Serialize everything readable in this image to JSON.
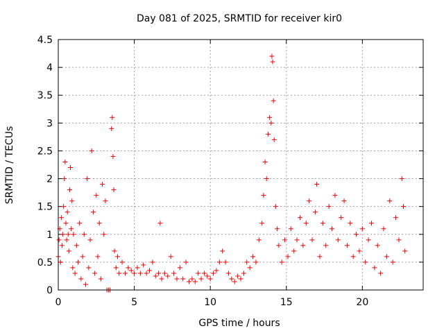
{
  "chart_data": {
    "type": "scatter",
    "title": "Day 081 of 2025, SRMTID for receiver kir0",
    "xlabel": "GPS time / hours",
    "ylabel": "SRMTID / TECUs",
    "xlim": [
      0,
      24
    ],
    "ylim": [
      0,
      4.5
    ],
    "x_ticks": [
      0,
      5,
      10,
      15,
      20
    ],
    "x_tick_labels": [
      "0",
      "5",
      "10",
      "15",
      "20"
    ],
    "y_ticks": [
      0,
      0.5,
      1,
      1.5,
      2,
      2.5,
      3,
      3.5,
      4,
      4.5
    ],
    "y_tick_labels": [
      "0",
      "0.5",
      "1",
      "1.5",
      "2",
      "2.5",
      "3",
      "3.5",
      "4",
      "4.5"
    ],
    "grid": true,
    "marker": "+",
    "color": "#ee0000",
    "series": [
      {
        "name": "SRMTID",
        "points": [
          [
            0.0,
            0.6
          ],
          [
            0.05,
            0.9
          ],
          [
            0.1,
            1.1
          ],
          [
            0.15,
            0.5
          ],
          [
            0.2,
            1.3
          ],
          [
            0.25,
            0.8
          ],
          [
            0.3,
            1.0
          ],
          [
            0.35,
            1.5
          ],
          [
            0.4,
            2.0
          ],
          [
            0.45,
            2.3
          ],
          [
            0.5,
            1.2
          ],
          [
            0.55,
            0.9
          ],
          [
            0.6,
            1.4
          ],
          [
            0.65,
            1.0
          ],
          [
            0.7,
            0.7
          ],
          [
            0.75,
            1.8
          ],
          [
            0.8,
            2.2
          ],
          [
            0.85,
            1.1
          ],
          [
            0.9,
            1.6
          ],
          [
            0.95,
            0.4
          ],
          [
            1.0,
            1.0
          ],
          [
            1.1,
            0.3
          ],
          [
            1.2,
            0.8
          ],
          [
            1.3,
            0.5
          ],
          [
            1.4,
            1.2
          ],
          [
            1.5,
            0.2
          ],
          [
            1.6,
            0.6
          ],
          [
            1.7,
            1.0
          ],
          [
            1.8,
            0.1
          ],
          [
            1.9,
            2.0
          ],
          [
            2.0,
            0.4
          ],
          [
            2.1,
            0.9
          ],
          [
            2.2,
            2.5
          ],
          [
            2.3,
            1.4
          ],
          [
            2.4,
            0.3
          ],
          [
            2.5,
            1.7
          ],
          [
            2.6,
            0.6
          ],
          [
            2.7,
            1.2
          ],
          [
            2.8,
            0.2
          ],
          [
            2.9,
            1.9
          ],
          [
            3.0,
            1.0
          ],
          [
            3.1,
            1.6
          ],
          [
            3.2,
            0.0
          ],
          [
            3.3,
            0.0
          ],
          [
            3.4,
            0.0
          ],
          [
            3.5,
            2.9
          ],
          [
            3.55,
            3.1
          ],
          [
            3.6,
            2.4
          ],
          [
            3.65,
            1.8
          ],
          [
            3.7,
            0.7
          ],
          [
            3.8,
            0.4
          ],
          [
            3.9,
            0.6
          ],
          [
            4.0,
            0.3
          ],
          [
            4.2,
            0.5
          ],
          [
            4.4,
            0.3
          ],
          [
            4.6,
            0.4
          ],
          [
            4.8,
            0.35
          ],
          [
            5.0,
            0.3
          ],
          [
            5.2,
            0.4
          ],
          [
            5.4,
            0.3
          ],
          [
            5.6,
            0.45
          ],
          [
            5.8,
            0.3
          ],
          [
            6.0,
            0.35
          ],
          [
            6.2,
            0.5
          ],
          [
            6.4,
            0.25
          ],
          [
            6.6,
            0.3
          ],
          [
            6.7,
            1.2
          ],
          [
            6.8,
            0.2
          ],
          [
            7.0,
            0.3
          ],
          [
            7.2,
            0.25
          ],
          [
            7.4,
            0.6
          ],
          [
            7.6,
            0.3
          ],
          [
            7.8,
            0.2
          ],
          [
            8.0,
            0.4
          ],
          [
            8.2,
            0.2
          ],
          [
            8.4,
            0.5
          ],
          [
            8.6,
            0.15
          ],
          [
            8.8,
            0.2
          ],
          [
            9.0,
            0.15
          ],
          [
            9.2,
            0.3
          ],
          [
            9.4,
            0.2
          ],
          [
            9.6,
            0.3
          ],
          [
            9.8,
            0.25
          ],
          [
            10.0,
            0.2
          ],
          [
            10.2,
            0.3
          ],
          [
            10.4,
            0.35
          ],
          [
            10.6,
            0.5
          ],
          [
            10.8,
            0.7
          ],
          [
            11.0,
            0.5
          ],
          [
            11.2,
            0.3
          ],
          [
            11.4,
            0.2
          ],
          [
            11.6,
            0.15
          ],
          [
            11.8,
            0.25
          ],
          [
            12.0,
            0.2
          ],
          [
            12.2,
            0.3
          ],
          [
            12.4,
            0.5
          ],
          [
            12.6,
            0.4
          ],
          [
            12.8,
            0.6
          ],
          [
            13.0,
            0.5
          ],
          [
            13.2,
            0.9
          ],
          [
            13.4,
            1.2
          ],
          [
            13.5,
            1.7
          ],
          [
            13.6,
            2.3
          ],
          [
            13.7,
            2.0
          ],
          [
            13.8,
            2.8
          ],
          [
            13.9,
            3.1
          ],
          [
            14.0,
            3.0
          ],
          [
            14.05,
            4.2
          ],
          [
            14.1,
            4.1
          ],
          [
            14.15,
            3.4
          ],
          [
            14.2,
            2.7
          ],
          [
            14.3,
            1.5
          ],
          [
            14.4,
            1.1
          ],
          [
            14.5,
            0.8
          ],
          [
            14.7,
            0.5
          ],
          [
            14.9,
            0.9
          ],
          [
            15.1,
            0.6
          ],
          [
            15.3,
            1.1
          ],
          [
            15.5,
            0.7
          ],
          [
            15.7,
            0.9
          ],
          [
            15.9,
            1.3
          ],
          [
            16.1,
            0.8
          ],
          [
            16.3,
            1.2
          ],
          [
            16.5,
            1.6
          ],
          [
            16.7,
            0.9
          ],
          [
            16.9,
            1.4
          ],
          [
            17.0,
            1.9
          ],
          [
            17.2,
            0.6
          ],
          [
            17.4,
            1.2
          ],
          [
            17.6,
            0.8
          ],
          [
            17.8,
            1.5
          ],
          [
            18.0,
            1.1
          ],
          [
            18.2,
            1.7
          ],
          [
            18.4,
            0.9
          ],
          [
            18.6,
            1.3
          ],
          [
            18.8,
            1.6
          ],
          [
            19.0,
            0.8
          ],
          [
            19.2,
            1.2
          ],
          [
            19.4,
            0.6
          ],
          [
            19.6,
            1.0
          ],
          [
            19.8,
            0.7
          ],
          [
            20.0,
            1.1
          ],
          [
            20.2,
            0.5
          ],
          [
            20.4,
            0.9
          ],
          [
            20.6,
            1.2
          ],
          [
            20.8,
            0.4
          ],
          [
            21.0,
            0.8
          ],
          [
            21.2,
            0.3
          ],
          [
            21.4,
            1.1
          ],
          [
            21.6,
            0.6
          ],
          [
            21.8,
            1.6
          ],
          [
            22.0,
            0.5
          ],
          [
            22.2,
            1.3
          ],
          [
            22.4,
            0.9
          ],
          [
            22.6,
            2.0
          ],
          [
            22.7,
            1.5
          ],
          [
            22.8,
            0.7
          ]
        ]
      }
    ]
  }
}
